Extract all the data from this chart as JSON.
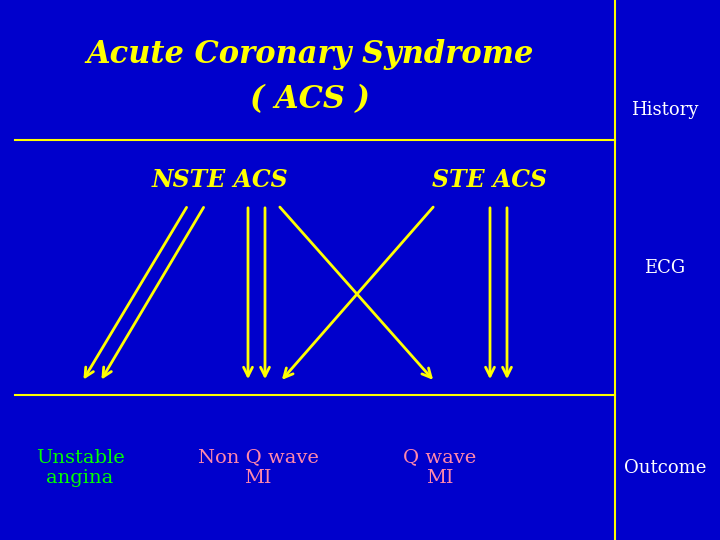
{
  "background_color": "#0000cc",
  "title_line1": "Acute Coronary Syndrome",
  "title_line2": "( ACS )",
  "title_color": "#ffff00",
  "title_fontsize": 22,
  "history_label": "History",
  "history_color": "#ffffff",
  "history_fontsize": 13,
  "ecg_label": "ECG",
  "ecg_color": "#ffffff",
  "ecg_fontsize": 13,
  "outcome_label": "Outcome",
  "outcome_color": "#ffffff",
  "outcome_fontsize": 13,
  "nste_label": "NSTE ACS",
  "nste_color": "#ffff00",
  "nste_fontsize": 17,
  "ste_label": "STE ACS",
  "ste_color": "#ffff00",
  "ste_fontsize": 17,
  "unstable_label": "Unstable\nangina",
  "unstable_color": "#00ff00",
  "unstable_fontsize": 14,
  "nonq_label": "Non Q wave\nMI",
  "nonq_color": "#ff88aa",
  "nonq_fontsize": 14,
  "qwave_label": "Q wave\nMI",
  "qwave_color": "#ff88aa",
  "qwave_fontsize": 14,
  "arrow_color": "#ffff00",
  "line_color": "#ffff00",
  "divider_color": "#ffff00",
  "fig_width": 7.2,
  "fig_height": 5.4,
  "dpi": 100
}
